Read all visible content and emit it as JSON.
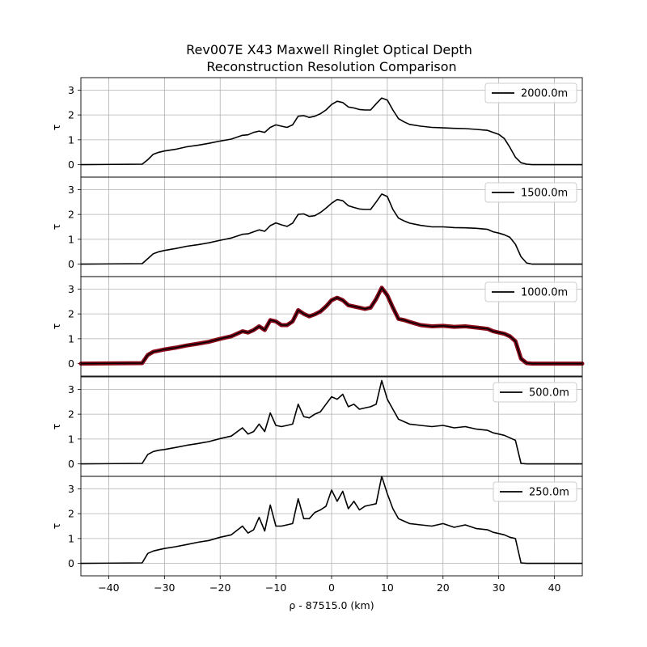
{
  "chart_data": {
    "type": "line",
    "title": "Rev007E X43 Maxwell Ringlet Optical Depth",
    "subtitle": "Reconstruction Resolution Comparison",
    "xlabel": "ρ - 87515.0 (km)",
    "ylabel": "τ",
    "xlim": [
      -45,
      45
    ],
    "ylim": [
      -0.5,
      3.5
    ],
    "xticks": [
      -40,
      -30,
      -20,
      -10,
      0,
      10,
      20,
      30,
      40
    ],
    "xtick_labels": [
      "−40",
      "−30",
      "−20",
      "−10",
      "0",
      "10",
      "20",
      "30",
      "40"
    ],
    "yticks": [
      0,
      1,
      2,
      3
    ],
    "ytick_labels": [
      "0",
      "1",
      "2",
      "3"
    ],
    "grid": true,
    "legend_position": "top-right",
    "panels": [
      {
        "name": "2000.0m",
        "color": "#000000",
        "x": [
          -45,
          -34,
          -33,
          -32,
          -31,
          -30,
          -28,
          -26,
          -24,
          -22,
          -20,
          -18,
          -16,
          -15,
          -14,
          -13,
          -12,
          -11,
          -10,
          -9,
          -8,
          -7,
          -6,
          -5,
          -4,
          -3,
          -2,
          -1,
          0,
          1,
          2,
          3,
          4,
          5,
          6,
          7,
          8,
          9,
          10,
          11,
          12,
          13,
          14,
          16,
          18,
          20,
          22,
          24,
          26,
          28,
          29,
          30,
          31,
          32,
          33,
          34,
          35,
          36,
          40,
          45
        ],
        "y": [
          0.0,
          0.02,
          0.2,
          0.42,
          0.5,
          0.55,
          0.62,
          0.72,
          0.78,
          0.86,
          0.95,
          1.03,
          1.18,
          1.2,
          1.3,
          1.35,
          1.3,
          1.5,
          1.6,
          1.55,
          1.5,
          1.6,
          1.95,
          1.97,
          1.9,
          1.95,
          2.05,
          2.2,
          2.42,
          2.55,
          2.5,
          2.32,
          2.28,
          2.22,
          2.2,
          2.2,
          2.45,
          2.68,
          2.6,
          2.2,
          1.85,
          1.72,
          1.62,
          1.55,
          1.5,
          1.48,
          1.46,
          1.45,
          1.42,
          1.38,
          1.3,
          1.22,
          1.05,
          0.7,
          0.3,
          0.08,
          0.02,
          0.0,
          0.0,
          0.0
        ]
      },
      {
        "name": "1500.0m",
        "color": "#000000",
        "x": [
          -45,
          -34,
          -33,
          -32,
          -31,
          -30,
          -28,
          -26,
          -24,
          -22,
          -20,
          -18,
          -16,
          -15,
          -14,
          -13,
          -12,
          -11,
          -10,
          -9,
          -8,
          -7,
          -6,
          -5,
          -4,
          -3,
          -2,
          -1,
          0,
          1,
          2,
          3,
          4,
          5,
          6,
          7,
          8,
          9,
          10,
          11,
          12,
          13,
          14,
          16,
          18,
          20,
          22,
          24,
          26,
          28,
          29,
          30,
          31,
          32,
          33,
          34,
          35,
          36,
          40,
          45
        ],
        "y": [
          0.0,
          0.02,
          0.22,
          0.42,
          0.5,
          0.55,
          0.63,
          0.72,
          0.78,
          0.86,
          0.96,
          1.05,
          1.2,
          1.22,
          1.3,
          1.38,
          1.32,
          1.55,
          1.66,
          1.58,
          1.52,
          1.65,
          2.0,
          2.02,
          1.92,
          1.95,
          2.08,
          2.25,
          2.45,
          2.6,
          2.55,
          2.35,
          2.28,
          2.22,
          2.2,
          2.2,
          2.5,
          2.82,
          2.72,
          2.2,
          1.85,
          1.74,
          1.65,
          1.56,
          1.5,
          1.5,
          1.47,
          1.46,
          1.44,
          1.4,
          1.3,
          1.25,
          1.18,
          1.08,
          0.8,
          0.3,
          0.05,
          0.0,
          0.0,
          0.0
        ]
      },
      {
        "name": "1000.0m",
        "color": "#000000",
        "x": [
          -45,
          -34,
          -33,
          -32,
          -31,
          -30,
          -28,
          -26,
          -24,
          -22,
          -20,
          -18,
          -16,
          -15,
          -14,
          -13,
          -12,
          -11,
          -10,
          -9,
          -8,
          -7,
          -6,
          -5,
          -4,
          -3,
          -2,
          -1,
          0,
          1,
          2,
          3,
          4,
          5,
          6,
          7,
          8,
          9,
          10,
          11,
          12,
          13,
          14,
          16,
          18,
          20,
          22,
          24,
          26,
          28,
          29,
          30,
          31,
          32,
          33,
          34,
          35,
          36,
          40,
          45
        ],
        "y": [
          0.0,
          0.02,
          0.35,
          0.48,
          0.52,
          0.57,
          0.64,
          0.73,
          0.8,
          0.88,
          1.0,
          1.1,
          1.3,
          1.25,
          1.35,
          1.5,
          1.35,
          1.75,
          1.7,
          1.55,
          1.55,
          1.7,
          2.15,
          2.0,
          1.9,
          1.98,
          2.1,
          2.3,
          2.55,
          2.65,
          2.55,
          2.35,
          2.3,
          2.25,
          2.2,
          2.25,
          2.6,
          3.05,
          2.75,
          2.25,
          1.8,
          1.75,
          1.68,
          1.55,
          1.5,
          1.52,
          1.48,
          1.5,
          1.45,
          1.4,
          1.3,
          1.25,
          1.2,
          1.1,
          0.9,
          0.2,
          0.02,
          0.0,
          0.0,
          0.0
        ]
      },
      {
        "name": "500.0m",
        "color": "#000000",
        "x": [
          -45,
          -34,
          -33,
          -32,
          -31,
          -30,
          -28,
          -26,
          -24,
          -22,
          -20,
          -18,
          -16,
          -15,
          -14,
          -13,
          -12,
          -11,
          -10,
          -9,
          -8,
          -7,
          -6,
          -5,
          -4,
          -3,
          -2,
          -1,
          0,
          1,
          2,
          3,
          4,
          5,
          6,
          7,
          8,
          9,
          10,
          11,
          12,
          13,
          14,
          16,
          18,
          20,
          22,
          24,
          26,
          28,
          29,
          30,
          31,
          32,
          33,
          34,
          35,
          36,
          40,
          45
        ],
        "y": [
          0.0,
          0.02,
          0.38,
          0.5,
          0.55,
          0.58,
          0.66,
          0.75,
          0.82,
          0.9,
          1.02,
          1.12,
          1.45,
          1.2,
          1.3,
          1.6,
          1.3,
          2.05,
          1.55,
          1.5,
          1.55,
          1.6,
          2.4,
          1.9,
          1.85,
          2.0,
          2.1,
          2.4,
          2.7,
          2.6,
          2.8,
          2.3,
          2.4,
          2.2,
          2.25,
          2.3,
          2.4,
          3.35,
          2.6,
          2.2,
          1.8,
          1.7,
          1.6,
          1.55,
          1.5,
          1.55,
          1.45,
          1.5,
          1.4,
          1.35,
          1.25,
          1.2,
          1.15,
          1.05,
          0.95,
          0.02,
          0.0,
          0.0,
          0.0,
          0.0
        ]
      },
      {
        "name": "250.0m",
        "color": "#000000",
        "x": [
          -45,
          -34,
          -33,
          -32,
          -31,
          -30,
          -28,
          -26,
          -24,
          -22,
          -20,
          -18,
          -16,
          -15,
          -14,
          -13,
          -12,
          -11,
          -10,
          -9,
          -8,
          -7,
          -6,
          -5,
          -4,
          -3,
          -2,
          -1,
          0,
          1,
          2,
          3,
          4,
          5,
          6,
          7,
          8,
          9,
          10,
          11,
          12,
          13,
          14,
          16,
          18,
          20,
          22,
          24,
          26,
          28,
          29,
          30,
          31,
          32,
          33,
          34,
          35,
          36,
          40,
          45
        ],
        "y": [
          0.0,
          0.02,
          0.4,
          0.5,
          0.55,
          0.6,
          0.67,
          0.76,
          0.85,
          0.92,
          1.05,
          1.15,
          1.5,
          1.22,
          1.35,
          1.85,
          1.3,
          2.35,
          1.5,
          1.5,
          1.55,
          1.6,
          2.6,
          1.8,
          1.8,
          2.05,
          2.15,
          2.3,
          2.95,
          2.5,
          2.9,
          2.2,
          2.5,
          2.15,
          2.3,
          2.35,
          2.4,
          3.5,
          2.8,
          2.2,
          1.8,
          1.7,
          1.6,
          1.55,
          1.5,
          1.6,
          1.45,
          1.55,
          1.4,
          1.35,
          1.25,
          1.2,
          1.15,
          1.05,
          1.0,
          0.02,
          0.0,
          0.0,
          0.0,
          0.0
        ]
      }
    ]
  },
  "highlight": {
    "color": "#8b0a1a"
  }
}
